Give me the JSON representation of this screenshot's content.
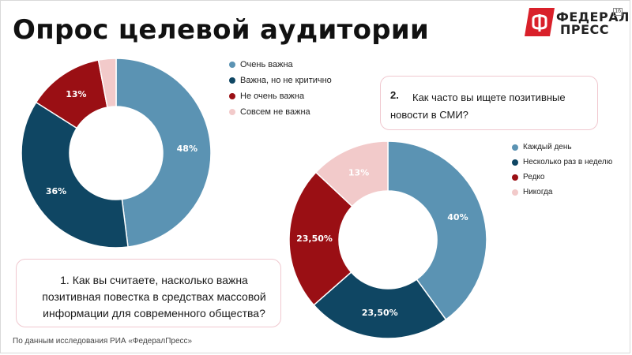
{
  "title": "Опрос целевой аудитории",
  "logo": {
    "line1": "ФЕДЕРАЛ",
    "line2": "ПРЕСС",
    "sup": "16",
    "icon": "federal-press-flag-icon"
  },
  "colors": {
    "blue": "#5b93b3",
    "navy": "#0f4663",
    "red": "#9a0f14",
    "pink": "#f2caca",
    "box_border": "#f0c8cf"
  },
  "question1": {
    "text": "1.    Как вы считаете, насколько важна позитивная повестка в средствах массовой информации для современного общества?"
  },
  "question2": {
    "number": "2.",
    "text": "Как часто вы ищете позитивные новости в СМИ?"
  },
  "footnote": "По данным исследования РИА «ФедералПресс»",
  "chart_data": [
    {
      "type": "pie",
      "variant": "donut",
      "categories": [
        "Очень важна",
        "Важна, но не критично",
        "Не очень важна",
        "Совсем не важна"
      ],
      "values": [
        48,
        36,
        13,
        3
      ],
      "labels": [
        "48%",
        "36%",
        "13%",
        ""
      ],
      "colors": [
        "#5b93b3",
        "#0f4663",
        "#9a0f14",
        "#f2caca"
      ],
      "legend": "right"
    },
    {
      "type": "pie",
      "variant": "donut",
      "categories": [
        "Каждый день",
        "Несколько раз в неделю",
        "Редко",
        "Никогда"
      ],
      "values": [
        40,
        23.5,
        23.5,
        13
      ],
      "labels": [
        "40%",
        "23,50%",
        "23,50%",
        "13%"
      ],
      "colors": [
        "#5b93b3",
        "#0f4663",
        "#9a0f14",
        "#f2caca"
      ],
      "legend": "right"
    }
  ]
}
